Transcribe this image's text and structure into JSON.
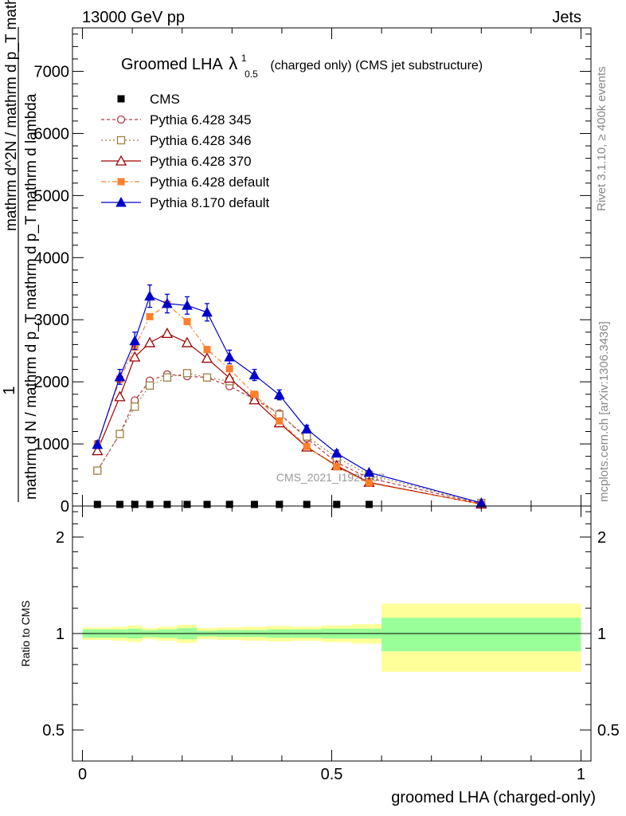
{
  "header": {
    "left": "13000 GeV pp",
    "right": "Jets"
  },
  "side_text": {
    "rivet": "Rivet 3.1.10, ≥ 400k events",
    "mcplots": "mcplots.cern.ch [arXiv:1306.3436]"
  },
  "chart_data": [
    {
      "type": "line",
      "title": "Groomed LHA",
      "title_symbol": "λ",
      "title_sup": "1",
      "title_sub": "0.5",
      "title_suffix": "(charged only) (CMS jet substructure)",
      "ylabel_parts": [
        "1",
        "mathrm d N / mathrm d p_T mathrm d p_T mathrm d lambda",
        "mathrm d^2N / mathrm d p_T mathrm d lambda"
      ],
      "watermark": "CMS_2021_I1920187",
      "xlim": [
        -0.02,
        1.02
      ],
      "ylim": [
        0,
        7700
      ],
      "y_ticks": [
        0,
        1000,
        2000,
        3000,
        4000,
        5000,
        6000,
        7000
      ],
      "y_tick_labels": [
        "0",
        "1000",
        "2000",
        "3000",
        "4000",
        "5000",
        "6000",
        "7000"
      ],
      "x": [
        0.03,
        0.075,
        0.105,
        0.135,
        0.17,
        0.21,
        0.25,
        0.295,
        0.345,
        0.395,
        0.45,
        0.51,
        0.575,
        0.8
      ],
      "series": [
        {
          "name": "CMS",
          "style": "data",
          "color": "#000000",
          "values": [
            0,
            0,
            0,
            0,
            0,
            0,
            0,
            0,
            0,
            0,
            0,
            0,
            0,
            0
          ]
        },
        {
          "name": "Pythia 6.428 345",
          "style": "circle",
          "color": "#b03a48",
          "dash": "4,3",
          "values": [
            570,
            1160,
            1700,
            2020,
            2120,
            2090,
            2070,
            1930,
            1720,
            1490,
            1090,
            700,
            450,
            40
          ]
        },
        {
          "name": "Pythia 6.428 346",
          "style": "square-open",
          "color": "#a08040",
          "dash": "2,3",
          "values": [
            570,
            1160,
            1600,
            1940,
            2070,
            2140,
            2070,
            2010,
            1770,
            1470,
            1120,
            780,
            500,
            50
          ]
        },
        {
          "name": "Pythia 6.428 370",
          "style": "triangle-open",
          "color": "#9b0000",
          "dash": "",
          "values": [
            890,
            1760,
            2400,
            2630,
            2780,
            2630,
            2380,
            2060,
            1710,
            1340,
            950,
            650,
            380,
            30
          ]
        },
        {
          "name": "Pythia 6.428 default",
          "style": "square-filled",
          "color": "#ff7f2a",
          "dash": "6,3,2,3",
          "values": [
            1000,
            2040,
            2560,
            3050,
            3250,
            2970,
            2520,
            2210,
            1800,
            1370,
            960,
            630,
            370,
            30
          ]
        },
        {
          "name": "Pythia 8.170 default",
          "style": "triangle-filled",
          "color": "#0000cc",
          "dash": "",
          "values": [
            990,
            2080,
            2660,
            3380,
            3260,
            3230,
            3120,
            2400,
            2110,
            1790,
            1240,
            850,
            540,
            50
          ]
        }
      ],
      "errors_p8": [
        60,
        120,
        140,
        180,
        150,
        140,
        140,
        110,
        90,
        80,
        60,
        50,
        30,
        10
      ]
    },
    {
      "type": "area",
      "ylabel": "Ratio to CMS",
      "xlabel": "groomed LHA (charged-only)",
      "xlim": [
        -0.02,
        1.02
      ],
      "ylim": [
        0.4,
        2.5
      ],
      "log_y": true,
      "y_tick_labels": [
        "0.5",
        "1",
        "2"
      ],
      "x_tick_labels": [
        "0",
        "0.5",
        "1"
      ],
      "bins": [
        0,
        0.06,
        0.09,
        0.12,
        0.15,
        0.19,
        0.23,
        0.27,
        0.32,
        0.37,
        0.42,
        0.48,
        0.54,
        0.6,
        1.0
      ],
      "stat_half_width": [
        0.03,
        0.03,
        0.035,
        0.025,
        0.03,
        0.04,
        0.02,
        0.025,
        0.025,
        0.03,
        0.03,
        0.035,
        0.035,
        0.12
      ],
      "total_half_width": [
        0.045,
        0.05,
        0.06,
        0.04,
        0.05,
        0.065,
        0.04,
        0.045,
        0.05,
        0.055,
        0.05,
        0.06,
        0.07,
        0.24
      ],
      "band_colors": {
        "stat": "#99ff99",
        "total": "#ffff99"
      }
    }
  ]
}
